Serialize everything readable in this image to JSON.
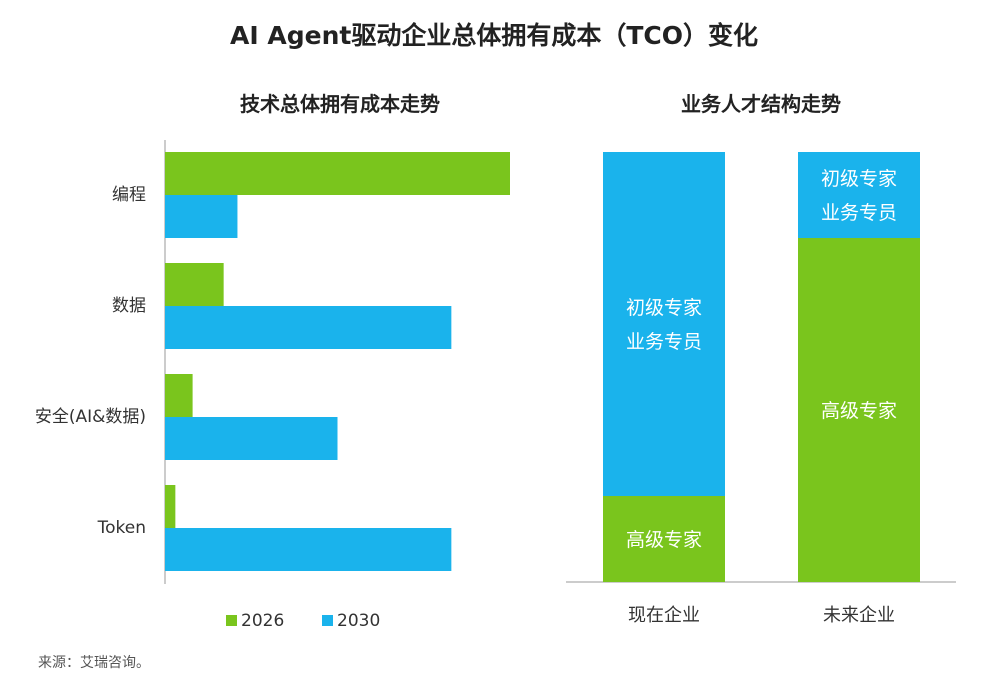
{
  "title": "AI Agent驱动企业总体拥有成本（TCO）变化",
  "source": "来源：艾瑞咨询。",
  "colors": {
    "green": "#7ac51d",
    "blue": "#1ab3ec",
    "axis": "#999999",
    "text": "#333333"
  },
  "chart_data": [
    {
      "type": "bar",
      "orientation": "horizontal",
      "title": "技术总体拥有成本走势",
      "categories": [
        "编程",
        "数据",
        "安全(AI&数据)",
        "Token"
      ],
      "series": [
        {
          "name": "2026",
          "values": [
            100,
            17,
            8,
            3
          ],
          "color": "#7ac51d"
        },
        {
          "name": "2030",
          "values": [
            21,
            83,
            50,
            83
          ],
          "color": "#1ab3ec"
        }
      ],
      "xlim": [
        0,
        100
      ],
      "legend": "bottom",
      "grid": false
    },
    {
      "type": "bar",
      "stacked": true,
      "title": "业务人才结构走势",
      "categories": [
        "现在企业",
        "未来企业"
      ],
      "segments": [
        {
          "category": "现在企业",
          "label": "高级专家",
          "value": 20,
          "color": "#7ac51d"
        },
        {
          "category": "现在企业",
          "label": "初级专家\n业务专员",
          "value": 80,
          "color": "#1ab3ec"
        },
        {
          "category": "未来企业",
          "label": "高级专家",
          "value": 80,
          "color": "#7ac51d"
        },
        {
          "category": "未来企业",
          "label": "初级专家\n业务专员",
          "value": 20,
          "color": "#1ab3ec"
        }
      ],
      "ylim": [
        0,
        100
      ],
      "grid": false
    }
  ]
}
